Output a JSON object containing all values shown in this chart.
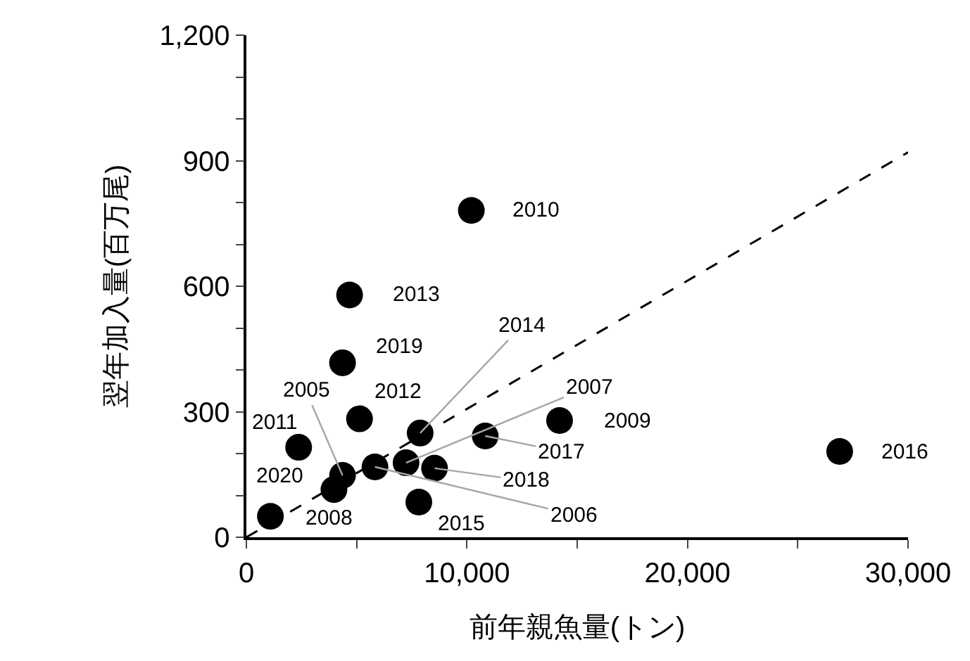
{
  "chart_data": {
    "type": "scatter",
    "xlabel": "前年親魚量(トン)",
    "ylabel": "翌年加入量(百万尾)",
    "series": [
      {
        "color": "#000000",
        "marker": "circle",
        "x": [
          4360,
          5830,
          7240,
          1090,
          14200,
          10200,
          2370,
          5130,
          4680,
          7880,
          7820,
          26900,
          10830,
          8530,
          4360,
          3970
        ],
        "values": [
          148,
          168,
          178,
          50,
          279,
          781,
          215,
          283,
          579,
          249,
          84,
          205,
          242,
          165,
          417,
          114
        ]
      },
      {
        "type": "line",
        "color": "#000000",
        "marker": "none",
        "line_style": "dashed",
        "x": [
          0,
          30000
        ],
        "values": [
          0,
          920
        ]
      }
    ],
    "annotations": [
      {
        "text": "2005",
        "x": 4360,
        "y": 148
      },
      {
        "text": "2006",
        "x": 5830,
        "y": 168
      },
      {
        "text": "2007",
        "x": 7240,
        "y": 178
      },
      {
        "text": "2008",
        "x": 1090,
        "y": 50
      },
      {
        "text": "2009",
        "x": 14200,
        "y": 279
      },
      {
        "text": "2010",
        "x": 10200,
        "y": 781
      },
      {
        "text": "2011",
        "x": 2370,
        "y": 215
      },
      {
        "text": "2012",
        "x": 5130,
        "y": 283
      },
      {
        "text": "2013",
        "x": 4680,
        "y": 579
      },
      {
        "text": "2014",
        "x": 7880,
        "y": 249
      },
      {
        "text": "2015",
        "x": 7820,
        "y": 84
      },
      {
        "text": "2016",
        "x": 26900,
        "y": 205
      },
      {
        "text": "2017",
        "x": 10830,
        "y": 242
      },
      {
        "text": "2018",
        "x": 8530,
        "y": 165
      },
      {
        "text": "2019",
        "x": 4360,
        "y": 417
      },
      {
        "text": "2020",
        "x": 3970,
        "y": 114
      }
    ],
    "xlim": [
      0,
      30000
    ],
    "xticks": [
      0,
      {
        "value": 5000,
        "label": null
      },
      {
        "value": 10000,
        "label": "10,000"
      },
      {
        "value": 15000,
        "label": null
      },
      {
        "value": 20000,
        "label": "20,000"
      },
      {
        "value": 25000,
        "label": null
      },
      {
        "value": 30000,
        "label": "30,000"
      }
    ],
    "ylim": [
      0,
      1200
    ],
    "yticks": [
      0,
      {
        "value": 100,
        "label": null
      },
      {
        "value": 200,
        "label": null
      },
      300,
      {
        "value": 400,
        "label": null
      },
      {
        "value": 500,
        "label": null
      },
      600,
      {
        "value": 700,
        "label": null
      },
      {
        "value": 800,
        "label": null
      },
      900,
      {
        "value": 1000,
        "label": null
      },
      {
        "value": 1100,
        "label": null
      },
      {
        "value": 1200,
        "label": "1,200"
      }
    ],
    "grid": false
  }
}
